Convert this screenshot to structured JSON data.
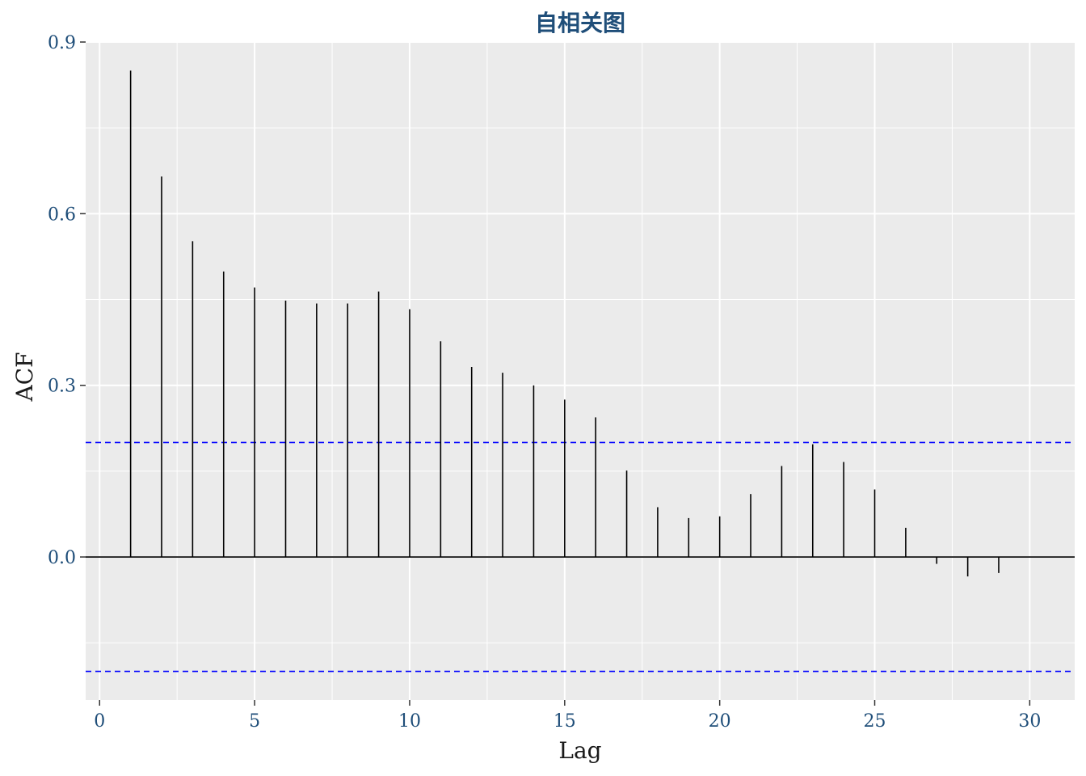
{
  "chart_data": {
    "type": "bar",
    "title": "自相关图",
    "xlabel": "Lag",
    "ylabel": "ACF",
    "xlim": [
      -0.45,
      31.45
    ],
    "ylim": [
      -0.25,
      0.9
    ],
    "x_ticks": [
      0,
      5,
      10,
      15,
      20,
      25,
      30
    ],
    "x_tick_labels": [
      "0",
      "5",
      "10",
      "15",
      "20",
      "25",
      "30"
    ],
    "y_ticks": [
      0.0,
      0.3,
      0.6,
      0.9
    ],
    "y_tick_labels": [
      "0.0",
      "0.3",
      "0.6",
      "0.9"
    ],
    "grid": true,
    "lags": [
      1,
      2,
      3,
      4,
      5,
      6,
      7,
      8,
      9,
      10,
      11,
      12,
      13,
      14,
      15,
      16,
      17,
      18,
      19,
      20,
      21,
      22,
      23,
      24,
      25,
      26,
      27,
      28,
      29
    ],
    "acf": [
      0.85,
      0.665,
      0.552,
      0.499,
      0.471,
      0.448,
      0.443,
      0.443,
      0.464,
      0.433,
      0.377,
      0.332,
      0.322,
      0.3,
      0.275,
      0.244,
      0.151,
      0.087,
      0.068,
      0.071,
      0.11,
      0.159,
      0.197,
      0.166,
      0.118,
      0.051,
      -0.012,
      -0.034,
      -0.028
    ],
    "confidence_bounds": [
      0.2,
      -0.2
    ],
    "colors": {
      "panel": "#ebebeb",
      "grid": "#ffffff",
      "bars": "#000000",
      "confidence": "#0000ff",
      "title": "#1f4e79",
      "tick": "#1f4e79"
    }
  }
}
